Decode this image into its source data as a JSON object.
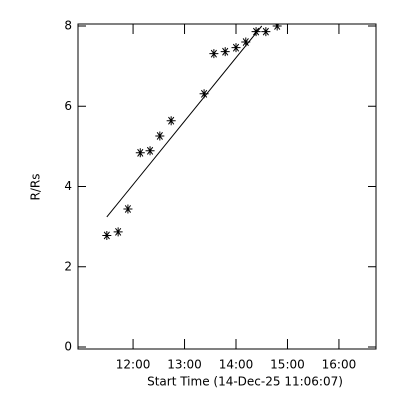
{
  "chart_data": {
    "type": "scatter",
    "xlabel": "Start Time (14-Dec-25 11:06:07)",
    "ylabel": "R/Rs",
    "xlim": [
      10.93,
      16.72
    ],
    "ylim": [
      0,
      8
    ],
    "xticks": [
      {
        "value": 12,
        "label": "12:00"
      },
      {
        "value": 13,
        "label": "13:00"
      },
      {
        "value": 14,
        "label": "14:00"
      },
      {
        "value": 15,
        "label": "15:00"
      },
      {
        "value": 16,
        "label": "16:00"
      }
    ],
    "yticks": [
      0,
      2,
      4,
      6,
      8
    ],
    "color": "#000000",
    "series": [
      {
        "marker": "star",
        "x": [
          11.49,
          11.71,
          11.9,
          12.14,
          12.33,
          12.52,
          12.74,
          13.38,
          13.57,
          13.79,
          14.0,
          14.19,
          14.39,
          14.58,
          14.8
        ],
        "values": [
          2.78,
          2.87,
          3.44,
          4.84,
          4.89,
          5.26,
          5.64,
          6.31,
          7.31,
          7.36,
          7.46,
          7.6,
          7.86,
          7.86,
          8.0
        ]
      },
      {
        "marker": "line",
        "x": [
          11.49,
          14.5
        ],
        "values": [
          3.24,
          8.0
        ]
      }
    ]
  }
}
